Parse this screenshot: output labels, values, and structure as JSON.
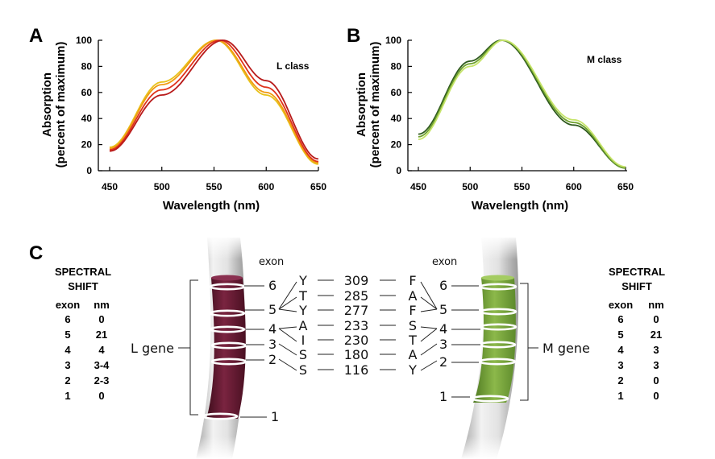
{
  "panelA": {
    "letter": "A",
    "class_label": "L class",
    "ylabel_line1": "Absorption",
    "ylabel_line2": "(percent of maximum)",
    "xlabel": "Wavelength (nm)",
    "xticks": [
      "450",
      "500",
      "550",
      "600",
      "650"
    ],
    "yticks": [
      "0",
      "20",
      "40",
      "60",
      "80",
      "100"
    ]
  },
  "panelB": {
    "letter": "B",
    "class_label": "M class",
    "ylabel_line1": "Absorption",
    "ylabel_line2": "(percent of maximum)",
    "xlabel": "Wavelength (nm)",
    "xticks": [
      "450",
      "500",
      "550",
      "600",
      "650"
    ],
    "yticks": [
      "0",
      "20",
      "40",
      "60",
      "80",
      "100"
    ]
  },
  "chart_data": [
    {
      "type": "line",
      "panel": "A",
      "xlim": [
        450,
        650
      ],
      "ylim": [
        0,
        100
      ],
      "series": [
        {
          "peak_nm": 552,
          "color": "#e8c21a",
          "values": [
            [
              450,
              18
            ],
            [
              500,
              68
            ],
            [
              552,
              100
            ],
            [
              600,
              58
            ],
            [
              650,
              5
            ]
          ]
        },
        {
          "peak_nm": 553,
          "color": "#f09a14",
          "values": [
            [
              450,
              17
            ],
            [
              500,
              66
            ],
            [
              553,
              100
            ],
            [
              600,
              60
            ],
            [
              650,
              6
            ]
          ]
        },
        {
          "peak_nm": 556,
          "color": "#e0321a",
          "values": [
            [
              450,
              16
            ],
            [
              500,
              62
            ],
            [
              556,
              100
            ],
            [
              600,
              64
            ],
            [
              650,
              7
            ]
          ]
        },
        {
          "peak_nm": 559,
          "color": "#b81a1a",
          "values": [
            [
              450,
              15
            ],
            [
              500,
              58
            ],
            [
              559,
              100
            ],
            [
              600,
              69
            ],
            [
              650,
              9
            ]
          ]
        }
      ]
    },
    {
      "type": "line",
      "panel": "B",
      "xlim": [
        450,
        650
      ],
      "ylim": [
        0,
        100
      ],
      "series": [
        {
          "peak_nm": 530,
          "color": "#2f5a1e",
          "values": [
            [
              450,
              28
            ],
            [
              500,
              84
            ],
            [
              530,
              100
            ],
            [
              600,
              35
            ],
            [
              650,
              2
            ]
          ]
        },
        {
          "peak_nm": 531,
          "color": "#6fa12e",
          "values": [
            [
              450,
              26
            ],
            [
              500,
              82
            ],
            [
              531,
              100
            ],
            [
              600,
              37
            ],
            [
              650,
              2
            ]
          ]
        },
        {
          "peak_nm": 532,
          "color": "#c6e46a",
          "values": [
            [
              450,
              24
            ],
            [
              500,
              80
            ],
            [
              532,
              100
            ],
            [
              600,
              39
            ],
            [
              650,
              3
            ]
          ]
        }
      ]
    }
  ],
  "panelC": {
    "letter": "C",
    "left_gene_label": "L gene",
    "right_gene_label": "M gene",
    "exon_header": "exon",
    "l_gene_color": "#6e1d36",
    "m_gene_color": "#7aa33a",
    "left_exon_numbers": [
      "6",
      "5",
      "4",
      "3",
      "2",
      "1"
    ],
    "right_exon_numbers": [
      "6",
      "5",
      "4",
      "3",
      "2",
      "1"
    ],
    "residues": [
      {
        "left": "Y",
        "position": "309",
        "right": "F"
      },
      {
        "left": "T",
        "position": "285",
        "right": "A"
      },
      {
        "left": "Y",
        "position": "277",
        "right": "F"
      },
      {
        "left": "A",
        "position": "233",
        "right": "S"
      },
      {
        "left": "I",
        "position": "230",
        "right": "T"
      },
      {
        "left": "S",
        "position": "180",
        "right": "A"
      },
      {
        "left": "S",
        "position": "116",
        "right": "Y"
      }
    ],
    "left_table": {
      "title_line1": "SPECTRAL",
      "title_line2": "SHIFT",
      "col_exon": "exon",
      "col_nm": "nm",
      "rows": [
        [
          "6",
          "0"
        ],
        [
          "5",
          "21"
        ],
        [
          "4",
          "4"
        ],
        [
          "3",
          "3-4"
        ],
        [
          "2",
          "2-3"
        ],
        [
          "1",
          "0"
        ]
      ]
    },
    "right_table": {
      "title_line1": "SPECTRAL",
      "title_line2": "SHIFT",
      "col_exon": "exon",
      "col_nm": "nm",
      "rows": [
        [
          "6",
          "0"
        ],
        [
          "5",
          "21"
        ],
        [
          "4",
          "3"
        ],
        [
          "3",
          "3"
        ],
        [
          "2",
          "0"
        ],
        [
          "1",
          "0"
        ]
      ]
    }
  }
}
